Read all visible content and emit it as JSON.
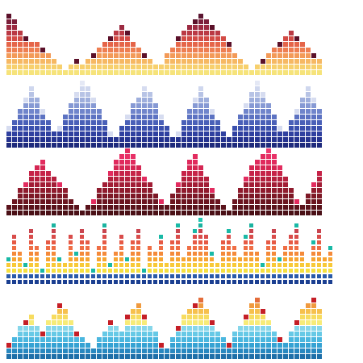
{
  "bands": [
    {
      "name": "equalizer-sunset",
      "cols": 56,
      "cell": 6,
      "step": 7,
      "start_x": 8,
      "vertical": "bottom-up",
      "baseline_rows": 1,
      "palette_direction": "bottom-up",
      "palette": [
        "#f6e37a",
        "#f7d06d",
        "#f6b863",
        "#f39a58",
        "#ee7e51",
        "#e56549",
        "#d34b45",
        "#ba3944",
        "#9c2a41",
        "#7b1f3a",
        "#5b1631",
        "#3f0f26"
      ],
      "peak_color": "#5b1029",
      "heights": [
        11,
        10,
        8,
        7,
        6,
        6,
        5,
        4,
        3,
        2,
        1,
        2,
        3,
        2,
        3,
        4,
        5,
        6,
        7,
        8,
        9,
        8,
        6,
        5,
        4,
        3,
        2,
        2,
        4,
        5,
        7,
        8,
        9,
        10,
        11,
        10,
        9,
        8,
        7,
        6,
        4,
        3,
        2,
        1,
        2,
        3,
        4,
        5,
        6,
        7,
        8,
        7,
        6,
        5,
        4,
        3
      ]
    },
    {
      "name": "equalizer-blue",
      "cols": 56,
      "cell": 6,
      "step": 7,
      "start_x": 8,
      "vertical": "bottom-up",
      "baseline_rows": 1,
      "palette_direction": "bottom-up",
      "palette": [
        "#1e2a7c",
        "#25338f",
        "#2f40a0",
        "#3a4fad",
        "#4a60b8",
        "#5c72c2",
        "#7085cb",
        "#8699d4",
        "#9eaedc",
        "#b7c3e5",
        "#cfd7ee",
        "#e4e8f5"
      ],
      "peak_color": "#d6dcf0",
      "heights": [
        4,
        5,
        7,
        9,
        11,
        9,
        7,
        5,
        3,
        4,
        6,
        8,
        10,
        12,
        11,
        9,
        7,
        5,
        3,
        2,
        4,
        6,
        8,
        9,
        11,
        10,
        8,
        6,
        4,
        2,
        3,
        5,
        7,
        9,
        11,
        9,
        7,
        5,
        3,
        2,
        4,
        6,
        8,
        10,
        12,
        10,
        8,
        6,
        4,
        3,
        5,
        7,
        9,
        11,
        9,
        7
      ]
    },
    {
      "name": "equalizer-crimson",
      "cols": 56,
      "cell": 6,
      "step": 7,
      "start_x": 8,
      "vertical": "bottom-up",
      "baseline_rows": 1,
      "palette_direction": "bottom-up",
      "palette": [
        "#4a1016",
        "#5a121b",
        "#6b1520",
        "#7d1826",
        "#8f1b2d",
        "#a21d35",
        "#b5203e",
        "#c62348",
        "#d52653",
        "#e02a5d",
        "#e83067",
        "#ee3a70"
      ],
      "peak_color": "#e22c5f",
      "heights": [
        2,
        3,
        5,
        6,
        8,
        9,
        10,
        8,
        7,
        6,
        5,
        3,
        2,
        1,
        2,
        3,
        5,
        6,
        8,
        10,
        11,
        12,
        11,
        9,
        7,
        6,
        4,
        3,
        2,
        4,
        6,
        8,
        10,
        11,
        9,
        7,
        5,
        3,
        2,
        1,
        3,
        5,
        7,
        9,
        10,
        11,
        12,
        11,
        9,
        7,
        5,
        3,
        2,
        4,
        6,
        8
      ]
    },
    {
      "name": "equalizer-multicolor",
      "cols": 58,
      "cell": 5,
      "step": 7,
      "start_x": 8,
      "vertical": "bottom-up",
      "baseline_rows": 1,
      "palette_direction": "bottom-up",
      "palette": [
        "#1b3f91",
        "#2a5aa8",
        "#f6e03f",
        "#f8c937",
        "#f7a431",
        "#f48a3a",
        "#ef6e45",
        "#e65a45",
        "#d94c4a",
        "#c9454f",
        "#1bb3a0",
        "#21c7b2"
      ],
      "peak_color": "#19b9a6",
      "heights": [
        5,
        9,
        6,
        4,
        10,
        7,
        3,
        8,
        11,
        5,
        4,
        9,
        6,
        10,
        8,
        3,
        7,
        11,
        4,
        6,
        9,
        5,
        8,
        10,
        3,
        7,
        6,
        9,
        4,
        8,
        11,
        5,
        7,
        10,
        12,
        9,
        6,
        4,
        8,
        10,
        7,
        5,
        9,
        11,
        6,
        4,
        8,
        10,
        5,
        7,
        9,
        11,
        6,
        4,
        8,
        10,
        5,
        7
      ]
    },
    {
      "name": "equalizer-cyan",
      "cols": 56,
      "cell": 6,
      "step": 7,
      "start_x": 8,
      "vertical": "bottom-up",
      "baseline_rows": 1,
      "palette_direction": "bottom-up",
      "palette": [
        "#1e6fa8",
        "#2888c0",
        "#35a2d3",
        "#4bb7df",
        "#66c9e6",
        "#86d6ea",
        "#f7eb78",
        "#f7dc5f",
        "#f6c04d",
        "#f09a3f",
        "#e46d3a",
        "#cf3c34"
      ],
      "peak_color": "#c51e26",
      "heights": [
        3,
        4,
        6,
        7,
        8,
        6,
        5,
        7,
        8,
        10,
        9,
        7,
        5,
        4,
        3,
        2,
        4,
        5,
        7,
        6,
        5,
        8,
        9,
        10,
        8,
        6,
        5,
        3,
        2,
        4,
        6,
        8,
        9,
        10,
        11,
        9,
        7,
        5,
        4,
        3,
        5,
        6,
        8,
        10,
        11,
        9,
        7,
        5,
        4,
        3,
        5,
        7,
        9,
        10,
        11,
        9
      ]
    }
  ]
}
